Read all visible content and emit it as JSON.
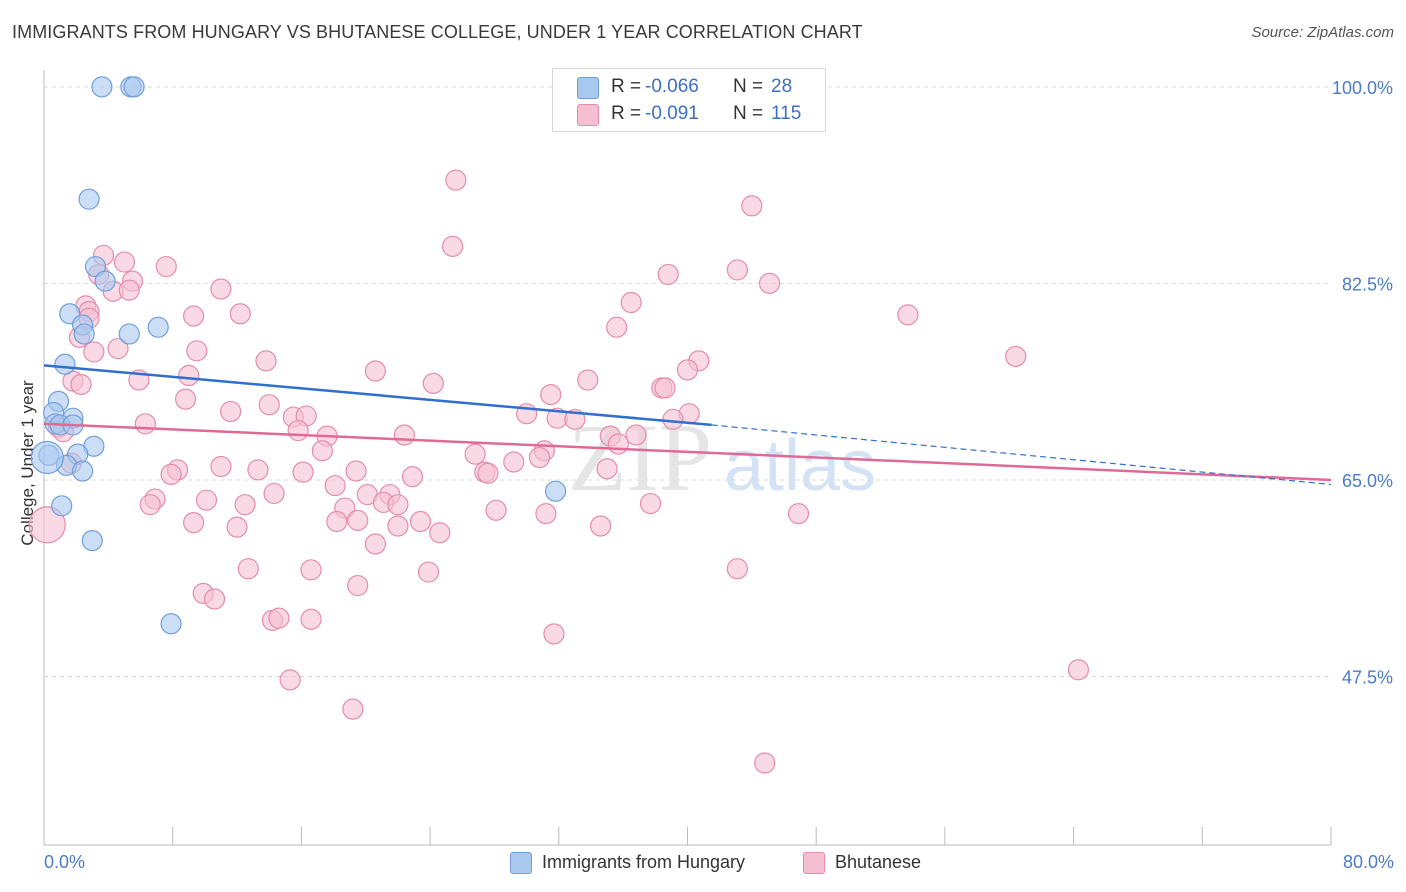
{
  "title": "IMMIGRANTS FROM HUNGARY VS BHUTANESE COLLEGE, UNDER 1 YEAR CORRELATION CHART",
  "source": "Source: ZipAtlas.com",
  "colors": {
    "blue_fill": "#a9c8ee",
    "blue_stroke": "#6f9fdc",
    "blue_line": "#2f6fcf",
    "pink_fill": "#f5bfd2",
    "pink_stroke": "#e58cab",
    "pink_line": "#e06a95",
    "grid": "#d9d9d9",
    "tick_label": "#4a7cc9"
  },
  "stats": [
    {
      "series": "Immigrants from Hungary",
      "r_label": "R =",
      "r_value": "-0.066",
      "n_label": "N =",
      "n_value": "28"
    },
    {
      "series": "Bhutanese",
      "r_label": "R =",
      "r_value": "-0.091",
      "n_label": "N =",
      "n_value": "115"
    }
  ],
  "legend": {
    "blue": "Immigrants from Hungary",
    "pink": "Bhutanese"
  },
  "watermark": {
    "zip": "ZIP",
    "atlas": "atlas"
  },
  "chart_data": {
    "type": "scatter",
    "title": "IMMIGRANTS FROM HUNGARY VS BHUTANESE COLLEGE, UNDER 1 YEAR CORRELATION CHART",
    "xlabel": "",
    "ylabel": "College, Under 1 year",
    "xlim": [
      0,
      80
    ],
    "ylim": [
      32.5,
      101.5
    ],
    "x_tick_labels": [
      "0.0%",
      "80.0%"
    ],
    "y_ticks": [
      100,
      82.5,
      65,
      47.5
    ],
    "y_tick_labels": [
      "100.0%",
      "82.5%",
      "65.0%",
      "47.5%"
    ],
    "grid": true,
    "series": [
      {
        "name": "Immigrants from Hungary",
        "points": [
          [
            3.6,
            100.0
          ],
          [
            5.4,
            100.0
          ],
          [
            5.6,
            100.0
          ],
          [
            2.8,
            90.0
          ],
          [
            3.2,
            84.0
          ],
          [
            3.8,
            82.7
          ],
          [
            1.6,
            79.8
          ],
          [
            2.4,
            78.8
          ],
          [
            2.5,
            78.0
          ],
          [
            5.3,
            78.0
          ],
          [
            7.1,
            78.6
          ],
          [
            1.3,
            75.3
          ],
          [
            0.9,
            72.0
          ],
          [
            0.6,
            71.0
          ],
          [
            1.8,
            70.5
          ],
          [
            0.7,
            70.0
          ],
          [
            1.0,
            69.9
          ],
          [
            1.8,
            69.9
          ],
          [
            3.1,
            68.0
          ],
          [
            0.3,
            67.2
          ],
          [
            2.1,
            67.3
          ],
          [
            1.4,
            66.3
          ],
          [
            2.4,
            65.8
          ],
          [
            1.1,
            62.7
          ],
          [
            3.0,
            59.6
          ],
          [
            7.9,
            52.2
          ],
          [
            31.8,
            64.0
          ],
          [
            0.2,
            67.0
          ]
        ],
        "sizes": [
          10,
          10,
          10,
          10,
          10,
          10,
          10,
          10,
          10,
          10,
          10,
          10,
          10,
          10,
          10,
          10,
          10,
          10,
          10,
          10,
          10,
          10,
          10,
          10,
          10,
          10,
          10,
          16
        ],
        "trend": {
          "x": [
            0,
            41.5
          ],
          "y": [
            75.2,
            69.9
          ]
        },
        "trend_extension": {
          "x": [
            41.5,
            80
          ],
          "y": [
            69.9,
            64.6
          ]
        }
      },
      {
        "name": "Bhutanese",
        "points": [
          [
            25.6,
            91.7
          ],
          [
            44.0,
            89.4
          ],
          [
            25.4,
            85.8
          ],
          [
            3.7,
            85.0
          ],
          [
            5.0,
            84.4
          ],
          [
            7.6,
            84.0
          ],
          [
            3.4,
            83.3
          ],
          [
            43.1,
            83.7
          ],
          [
            38.8,
            83.3
          ],
          [
            5.5,
            82.7
          ],
          [
            45.1,
            82.5
          ],
          [
            4.3,
            81.8
          ],
          [
            5.3,
            81.9
          ],
          [
            11.0,
            82.0
          ],
          [
            36.5,
            80.8
          ],
          [
            2.6,
            80.5
          ],
          [
            2.8,
            80.0
          ],
          [
            12.2,
            79.8
          ],
          [
            9.3,
            79.6
          ],
          [
            2.8,
            79.4
          ],
          [
            53.7,
            79.7
          ],
          [
            35.6,
            78.6
          ],
          [
            2.2,
            77.7
          ],
          [
            4.6,
            76.7
          ],
          [
            3.1,
            76.4
          ],
          [
            9.5,
            76.5
          ],
          [
            13.8,
            75.6
          ],
          [
            60.4,
            76.0
          ],
          [
            40.7,
            75.6
          ],
          [
            20.6,
            74.7
          ],
          [
            40.0,
            74.8
          ],
          [
            9.0,
            74.3
          ],
          [
            5.9,
            73.9
          ],
          [
            1.8,
            73.8
          ],
          [
            2.3,
            73.5
          ],
          [
            24.2,
            73.6
          ],
          [
            33.8,
            73.9
          ],
          [
            38.4,
            73.2
          ],
          [
            38.6,
            73.2
          ],
          [
            31.5,
            72.6
          ],
          [
            8.8,
            72.2
          ],
          [
            14.0,
            71.7
          ],
          [
            11.6,
            71.1
          ],
          [
            30.0,
            70.9
          ],
          [
            40.1,
            70.9
          ],
          [
            15.5,
            70.6
          ],
          [
            31.9,
            70.5
          ],
          [
            16.3,
            70.7
          ],
          [
            33.0,
            70.4
          ],
          [
            39.1,
            70.4
          ],
          [
            6.3,
            70.0
          ],
          [
            0.9,
            69.7
          ],
          [
            1.2,
            69.3
          ],
          [
            15.8,
            69.4
          ],
          [
            17.6,
            68.9
          ],
          [
            22.4,
            69.0
          ],
          [
            35.2,
            68.9
          ],
          [
            36.8,
            69.0
          ],
          [
            35.7,
            68.2
          ],
          [
            17.3,
            67.6
          ],
          [
            31.1,
            67.6
          ],
          [
            26.8,
            67.3
          ],
          [
            30.8,
            67.0
          ],
          [
            29.2,
            66.6
          ],
          [
            1.7,
            66.5
          ],
          [
            11.0,
            66.2
          ],
          [
            8.3,
            65.9
          ],
          [
            13.3,
            65.9
          ],
          [
            16.1,
            65.7
          ],
          [
            19.4,
            65.8
          ],
          [
            27.4,
            65.7
          ],
          [
            27.6,
            65.6
          ],
          [
            7.9,
            65.5
          ],
          [
            35.0,
            66.0
          ],
          [
            22.9,
            65.3
          ],
          [
            18.1,
            64.5
          ],
          [
            20.1,
            63.7
          ],
          [
            14.3,
            63.8
          ],
          [
            21.5,
            63.7
          ],
          [
            6.9,
            63.3
          ],
          [
            10.1,
            63.2
          ],
          [
            21.1,
            63.0
          ],
          [
            12.5,
            62.8
          ],
          [
            22.0,
            62.8
          ],
          [
            6.6,
            62.8
          ],
          [
            18.7,
            62.5
          ],
          [
            37.7,
            62.9
          ],
          [
            28.1,
            62.3
          ],
          [
            19.5,
            61.4
          ],
          [
            31.2,
            62.0
          ],
          [
            46.9,
            62.0
          ],
          [
            9.3,
            61.2
          ],
          [
            18.2,
            61.3
          ],
          [
            23.4,
            61.3
          ],
          [
            12.0,
            60.8
          ],
          [
            22.0,
            60.9
          ],
          [
            34.6,
            60.9
          ],
          [
            24.6,
            60.3
          ],
          [
            0.2,
            61.0
          ],
          [
            20.6,
            59.3
          ],
          [
            12.7,
            57.1
          ],
          [
            16.6,
            57.0
          ],
          [
            23.9,
            56.8
          ],
          [
            43.1,
            57.1
          ],
          [
            19.5,
            55.6
          ],
          [
            9.9,
            54.9
          ],
          [
            10.6,
            54.4
          ],
          [
            14.2,
            52.5
          ],
          [
            14.6,
            52.7
          ],
          [
            16.6,
            52.6
          ],
          [
            31.7,
            51.3
          ],
          [
            64.3,
            48.1
          ],
          [
            15.3,
            47.2
          ],
          [
            19.2,
            44.6
          ],
          [
            44.8,
            39.8
          ]
        ],
        "sizes": [
          10,
          10,
          10,
          10,
          10,
          10,
          10,
          10,
          10,
          10,
          10,
          10,
          10,
          10,
          10,
          10,
          10,
          10,
          10,
          10,
          10,
          10,
          10,
          10,
          10,
          10,
          10,
          10,
          10,
          10,
          10,
          10,
          10,
          10,
          10,
          10,
          10,
          10,
          10,
          10,
          10,
          10,
          10,
          10,
          10,
          10,
          10,
          10,
          10,
          10,
          10,
          10,
          10,
          10,
          10,
          10,
          10,
          10,
          10,
          10,
          10,
          10,
          10,
          10,
          10,
          10,
          10,
          10,
          10,
          10,
          10,
          10,
          10,
          10,
          10,
          10,
          10,
          10,
          10,
          10,
          10,
          10,
          10,
          10,
          10,
          10,
          10,
          10,
          10,
          10,
          10,
          10,
          10,
          10,
          10,
          10,
          10,
          10,
          18,
          10,
          10,
          10,
          10,
          10,
          10,
          10,
          10,
          10,
          10,
          10,
          10,
          10,
          10,
          10,
          10
        ],
        "trend": {
          "x": [
            0,
            80
          ],
          "y": [
            70.0,
            65.0
          ]
        }
      }
    ]
  }
}
